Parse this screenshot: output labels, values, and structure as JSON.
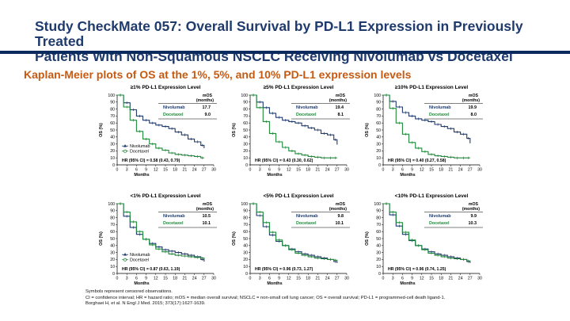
{
  "slide": {
    "title_line1": "Study CheckMate 057: Overall Survival by PD-L1 Expression in Previously Treated",
    "title_line2": "Patients With Non-Squamous NSCLC Receiving Nivolumab vs Docetaxel",
    "subtitle": "Kaplan-Meier plots of OS at the 1%, 5%, and 10% PD-L1 expression levels",
    "footnotes": [
      "Symbols represent censored observations.",
      "CI = confidence interval; HR = hazard ratio; mOS = median overall survival; NSCLC = non-small cell lung cancer; OS = overall survival; PD-L1 = programmed-cell death ligand-1.",
      "Borghaei H, et al. N Engl J Med. 2015; 373(17):1627-1639."
    ]
  },
  "colors": {
    "nivolumab": "#1f3b6e",
    "docetaxel": "#1e8a3a",
    "title": "#1f3b6e",
    "subtitle": "#c65a12"
  },
  "chart_data": [
    {
      "type": "line",
      "title": "≥1% PD-L1 Expression Level",
      "xlabel": "Months",
      "ylabel": "OS (%)",
      "xlim": [
        0,
        30
      ],
      "ylim": [
        0,
        100
      ],
      "x_ticks": [
        "0",
        "3",
        "6",
        "9",
        "12",
        "15",
        "18",
        "21",
        "24",
        "27",
        "30"
      ],
      "y_ticks": [
        "0",
        "10",
        "20",
        "30",
        "40",
        "50",
        "60",
        "70",
        "80",
        "90",
        "100"
      ],
      "mos_header": [
        "mOS",
        "(months)"
      ],
      "legend": [
        "Nivolumab",
        "Docetaxel"
      ],
      "hr": "HR (95% CI) = 0.58 (0.43, 0.79)",
      "series": [
        {
          "name": "Nivolumab",
          "mos": "17.7",
          "x": [
            0,
            2,
            4,
            6,
            8,
            10,
            12,
            14,
            16,
            18,
            20,
            22,
            24,
            26,
            27
          ],
          "y": [
            100,
            89,
            79,
            70,
            64,
            60,
            57,
            55,
            52,
            47,
            43,
            37,
            33,
            28,
            24
          ]
        },
        {
          "name": "Docetaxel",
          "mos": "9.0",
          "x": [
            0,
            2,
            4,
            6,
            8,
            10,
            12,
            14,
            16,
            18,
            20,
            22,
            24,
            26,
            27
          ],
          "y": [
            100,
            83,
            64,
            48,
            37,
            30,
            24,
            21,
            17,
            15,
            14,
            13,
            12,
            10,
            10
          ]
        }
      ]
    },
    {
      "type": "line",
      "title": "≥5% PD-L1 Expression Level",
      "xlabel": "Months",
      "ylabel": "OS (%)",
      "xlim": [
        0,
        30
      ],
      "ylim": [
        0,
        100
      ],
      "x_ticks": [
        "0",
        "3",
        "6",
        "9",
        "12",
        "15",
        "18",
        "21",
        "24",
        "27",
        "30"
      ],
      "y_ticks": [
        "0",
        "10",
        "20",
        "30",
        "40",
        "50",
        "60",
        "70",
        "80",
        "90",
        "100"
      ],
      "mos_header": [
        "mOS",
        "(months)"
      ],
      "legend": [],
      "hr": "HR (95% CI) = 0.43 (0.30, 0.62)",
      "series": [
        {
          "name": "Nivolumab",
          "mos": "19.4",
          "x": [
            0,
            2,
            4,
            6,
            8,
            10,
            12,
            14,
            16,
            18,
            20,
            22,
            24,
            26,
            27
          ],
          "y": [
            100,
            90,
            82,
            74,
            68,
            64,
            62,
            60,
            56,
            53,
            50,
            45,
            43,
            36,
            29
          ]
        },
        {
          "name": "Docetaxel",
          "mos": "8.1",
          "x": [
            0,
            2,
            4,
            6,
            8,
            10,
            12,
            14,
            16,
            18,
            20,
            22,
            24,
            26,
            27
          ],
          "y": [
            100,
            82,
            62,
            45,
            33,
            25,
            20,
            16,
            14,
            12,
            11,
            10,
            10,
            10,
            10
          ]
        }
      ]
    },
    {
      "type": "line",
      "title": "≥10% PD-L1 Expression Level",
      "xlabel": "Months",
      "ylabel": "OS (%)",
      "xlim": [
        0,
        30
      ],
      "ylim": [
        0,
        100
      ],
      "x_ticks": [
        "0",
        "3",
        "6",
        "9",
        "12",
        "15",
        "18",
        "21",
        "24",
        "27",
        "30"
      ],
      "y_ticks": [
        "0",
        "10",
        "20",
        "30",
        "40",
        "50",
        "60",
        "70",
        "80",
        "90",
        "100"
      ],
      "mos_header": [
        "mOS",
        "(months)"
      ],
      "legend": [],
      "hr": "HR (95% CI) = 0.40 (0.27, 0.58)",
      "series": [
        {
          "name": "Nivolumab",
          "mos": "19.9",
          "x": [
            0,
            2,
            4,
            6,
            8,
            10,
            12,
            14,
            16,
            18,
            20,
            22,
            24,
            26,
            27
          ],
          "y": [
            100,
            91,
            83,
            75,
            70,
            66,
            64,
            62,
            58,
            55,
            52,
            47,
            44,
            38,
            31
          ]
        },
        {
          "name": "Docetaxel",
          "mos": "8.0",
          "x": [
            0,
            2,
            4,
            6,
            8,
            10,
            12,
            14,
            16,
            18,
            20,
            22,
            24,
            26,
            27
          ],
          "y": [
            100,
            81,
            60,
            44,
            32,
            24,
            19,
            15,
            13,
            12,
            11,
            10,
            10,
            10,
            10
          ]
        }
      ]
    },
    {
      "type": "line",
      "title": "<1% PD-L1 Expression Level",
      "xlabel": "Months",
      "ylabel": "OS (%)",
      "xlim": [
        0,
        30
      ],
      "ylim": [
        0,
        100
      ],
      "x_ticks": [
        "0",
        "3",
        "6",
        "9",
        "12",
        "15",
        "18",
        "21",
        "24",
        "27",
        "30"
      ],
      "y_ticks": [
        "0",
        "10",
        "20",
        "30",
        "40",
        "50",
        "60",
        "70",
        "80",
        "90",
        "100"
      ],
      "mos_header": [
        "mOS",
        "(months)"
      ],
      "legend": [
        "Nivolumab",
        "Docetaxel"
      ],
      "hr": "HR (95% CI) = 0.87 (0.63, 1.19)",
      "series": [
        {
          "name": "Nivolumab",
          "mos": "10.5",
          "x": [
            0,
            2,
            4,
            6,
            8,
            10,
            12,
            14,
            16,
            18,
            20,
            22,
            24,
            26,
            27
          ],
          "y": [
            100,
            82,
            66,
            56,
            49,
            43,
            38,
            34,
            32,
            30,
            28,
            26,
            24,
            20,
            17
          ]
        },
        {
          "name": "Docetaxel",
          "mos": "10.1",
          "x": [
            0,
            2,
            4,
            6,
            8,
            10,
            12,
            14,
            16,
            18,
            20,
            22,
            24,
            26,
            27
          ],
          "y": [
            100,
            88,
            74,
            60,
            49,
            41,
            35,
            31,
            28,
            26,
            25,
            24,
            23,
            22,
            20
          ]
        }
      ]
    },
    {
      "type": "line",
      "title": "<5% PD-L1 Expression Level",
      "xlabel": "Months",
      "ylabel": "OS (%)",
      "xlim": [
        0,
        30
      ],
      "ylim": [
        0,
        100
      ],
      "x_ticks": [
        "0",
        "3",
        "6",
        "9",
        "12",
        "15",
        "18",
        "21",
        "24",
        "27",
        "30"
      ],
      "y_ticks": [
        "0",
        "10",
        "20",
        "30",
        "40",
        "50",
        "60",
        "70",
        "80",
        "90",
        "100"
      ],
      "mos_header": [
        "mOS",
        "(months)"
      ],
      "legend": [],
      "hr": "HR (95% CI) = 0.96 (0.73, 1.27)",
      "series": [
        {
          "name": "Nivolumab",
          "mos": "9.8",
          "x": [
            0,
            2,
            4,
            6,
            8,
            10,
            12,
            14,
            16,
            18,
            20,
            22,
            24,
            26,
            27
          ],
          "y": [
            100,
            83,
            67,
            55,
            46,
            40,
            35,
            31,
            28,
            26,
            24,
            22,
            20,
            17,
            15
          ]
        },
        {
          "name": "Docetaxel",
          "mos": "10.1",
          "x": [
            0,
            2,
            4,
            6,
            8,
            10,
            12,
            14,
            16,
            18,
            20,
            22,
            24,
            26,
            27
          ],
          "y": [
            100,
            88,
            73,
            59,
            48,
            40,
            34,
            29,
            26,
            24,
            22,
            21,
            20,
            19,
            18
          ]
        }
      ]
    },
    {
      "type": "line",
      "title": "<10% PD-L1 Expression Level",
      "xlabel": "Months",
      "ylabel": "OS (%)",
      "xlim": [
        0,
        30
      ],
      "ylim": [
        0,
        100
      ],
      "x_ticks": [
        "0",
        "3",
        "6",
        "9",
        "12",
        "15",
        "18",
        "21",
        "24",
        "27",
        "30"
      ],
      "y_ticks": [
        "0",
        "10",
        "20",
        "30",
        "40",
        "50",
        "60",
        "70",
        "80",
        "90",
        "100"
      ],
      "mos_header": [
        "mOS",
        "(months)"
      ],
      "legend": [],
      "hr": "HR (95% CI) = 0.96 (0.74, 1.25)",
      "series": [
        {
          "name": "Nivolumab",
          "mos": "9.9",
          "x": [
            0,
            2,
            4,
            6,
            8,
            10,
            12,
            14,
            16,
            18,
            20,
            22,
            24,
            26,
            27
          ],
          "y": [
            100,
            84,
            68,
            56,
            47,
            40,
            35,
            31,
            28,
            26,
            24,
            22,
            20,
            17,
            15
          ]
        },
        {
          "name": "Docetaxel",
          "mos": "10.3",
          "x": [
            0,
            2,
            4,
            6,
            8,
            10,
            12,
            14,
            16,
            18,
            20,
            22,
            24,
            26,
            27
          ],
          "y": [
            100,
            88,
            73,
            59,
            48,
            40,
            34,
            29,
            26,
            24,
            22,
            21,
            20,
            18,
            17
          ]
        }
      ]
    }
  ]
}
